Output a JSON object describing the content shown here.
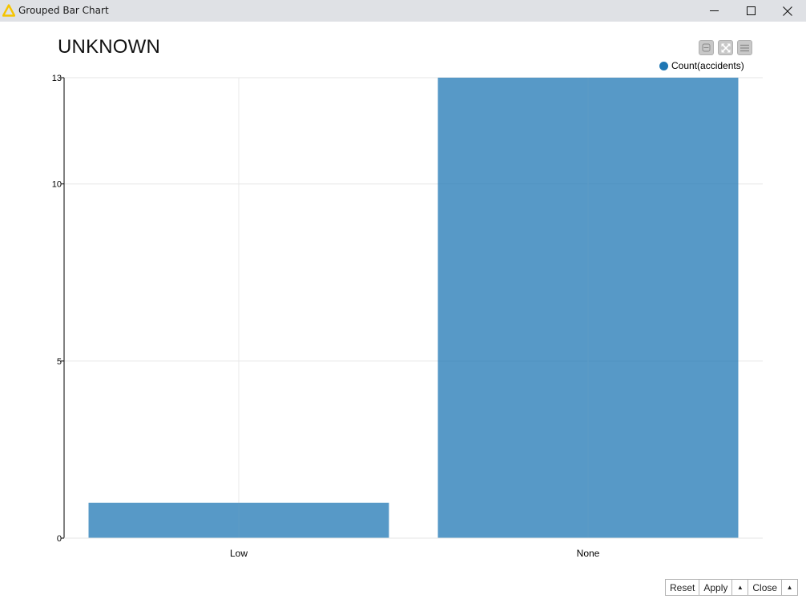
{
  "window": {
    "title": "Grouped Bar Chart",
    "icon": "knime-triangle-icon",
    "controls": [
      "minimize-icon",
      "maximize-icon",
      "close-icon"
    ]
  },
  "view_controls": [
    "collapse-icon",
    "fullscreen-icon",
    "menu-icon"
  ],
  "legend": {
    "label": "Count(accidents)",
    "color": "#1f77b4"
  },
  "buttons": {
    "reset": "Reset",
    "apply": "Apply",
    "apply_arrow": "▲",
    "close": "Close",
    "close_arrow": "▲"
  },
  "chart_data": {
    "type": "bar",
    "title": "UNKNOWN",
    "xlabel": "",
    "ylabel": "",
    "categories": [
      "Low",
      "None"
    ],
    "series": [
      {
        "name": "Count(accidents)",
        "values": [
          1,
          13
        ]
      }
    ],
    "ylim": [
      0,
      13
    ],
    "yticks": [
      "0",
      "5",
      "10",
      "13"
    ],
    "bar_color": "#1f77b4",
    "bar_opacity": 0.75,
    "grid": true,
    "legend_position": "top-right"
  }
}
